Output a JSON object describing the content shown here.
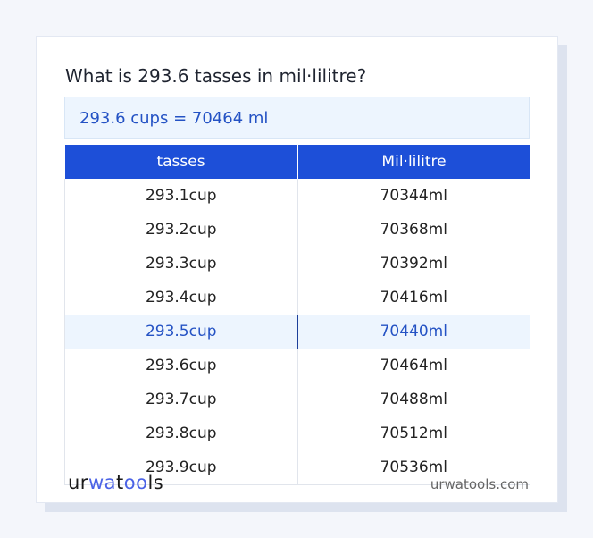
{
  "title": "What is 293.6 tasses in mil·lilitre?",
  "result": "293.6 cups = 70464 ml",
  "table": {
    "headers": [
      "tasses",
      "Mil·lilitre"
    ],
    "highlighted_row": 4,
    "rows": [
      [
        "293.1cup",
        "70344ml"
      ],
      [
        "293.2cup",
        "70368ml"
      ],
      [
        "293.3cup",
        "70392ml"
      ],
      [
        "293.4cup",
        "70416ml"
      ],
      [
        "293.5cup",
        "70440ml"
      ],
      [
        "293.6cup",
        "70464ml"
      ],
      [
        "293.7cup",
        "70488ml"
      ],
      [
        "293.8cup",
        "70512ml"
      ],
      [
        "293.9cup",
        "70536ml"
      ]
    ]
  },
  "footer": {
    "logo": "urwatools",
    "site": "urwatools.com"
  },
  "colors": {
    "accent": "#1d4fd8",
    "highlight": "#edf5fe",
    "logo_accent": "#4b63e6"
  }
}
